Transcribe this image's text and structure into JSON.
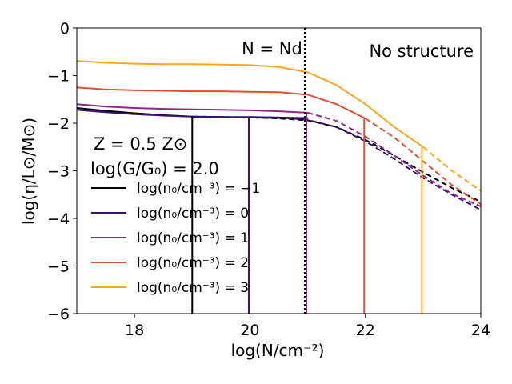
{
  "chart_data": {
    "type": "line",
    "xlabel": "log(N/cm⁻²)",
    "ylabel": "log(η/L⊙/M⊙)",
    "xlim": [
      17,
      24
    ],
    "ylim": [
      -6,
      0
    ],
    "xticks": [
      18,
      20,
      22,
      24
    ],
    "xtick_labels": [
      "18",
      "20",
      "22",
      "24"
    ],
    "yticks": [
      0,
      -1,
      -2,
      -3,
      -4,
      -5,
      -6
    ],
    "ytick_labels": [
      "0",
      "−1",
      "−2",
      "−3",
      "−4",
      "−5",
      "−6"
    ],
    "grid": false,
    "annotations": {
      "nd_label": "N = Nd",
      "nd_x": 20.95,
      "no_structure": "No structure",
      "metallicity": "Z = 0.5 Z⊙",
      "radiation": "log(G/G₀) = 2.0"
    },
    "legend_position": "center-left",
    "series": [
      {
        "name": "log(n₀/cm⁻³) = −1",
        "color": "#000000",
        "solid": {
          "x": [
            17,
            17.5,
            18,
            18.5,
            19,
            19.5,
            20,
            20.5,
            21
          ],
          "y": [
            -1.68,
            -1.74,
            -1.79,
            -1.83,
            -1.86,
            -1.87,
            -1.88,
            -1.89,
            -1.9
          ]
        },
        "dashed": {
          "x": [
            19,
            19.5,
            20,
            20.5,
            21,
            21.5,
            22,
            22.5,
            23,
            23.5,
            24
          ],
          "y": [
            -1.86,
            -1.87,
            -1.88,
            -1.9,
            -1.94,
            -2.08,
            -2.35,
            -2.68,
            -3.03,
            -3.36,
            -3.65
          ]
        },
        "cutoff": {
          "x": 19.0,
          "y": -1.86
        }
      },
      {
        "name": "log(n₀/cm⁻³) = 0",
        "color": "#3b0f70",
        "solid": {
          "x": [
            17,
            17.5,
            18,
            18.5,
            19,
            19.5,
            20,
            20.5,
            21
          ],
          "y": [
            -1.72,
            -1.77,
            -1.81,
            -1.84,
            -1.86,
            -1.87,
            -1.87,
            -1.88,
            -1.89
          ]
        },
        "dashed": {
          "x": [
            20,
            20.5,
            21,
            21.5,
            22,
            22.5,
            23,
            23.5,
            24
          ],
          "y": [
            -1.87,
            -1.88,
            -1.93,
            -2.08,
            -2.38,
            -2.75,
            -3.15,
            -3.5,
            -3.82
          ]
        },
        "cutoff": {
          "x": 19.98,
          "y": -1.87
        }
      },
      {
        "name": "log(n₀/cm⁻³) = 1",
        "color": "#8c2981",
        "solid": {
          "x": [
            17,
            17.5,
            18,
            18.5,
            19,
            19.5,
            20,
            20.5,
            21
          ],
          "y": [
            -1.6,
            -1.65,
            -1.68,
            -1.7,
            -1.71,
            -1.72,
            -1.73,
            -1.75,
            -1.78
          ]
        },
        "dashed": {
          "x": [
            21,
            21.5,
            22,
            22.5,
            23,
            23.5,
            24
          ],
          "y": [
            -1.78,
            -1.95,
            -2.28,
            -2.68,
            -3.1,
            -3.48,
            -3.75
          ]
        },
        "cutoff": {
          "x": 20.98,
          "y": -1.78
        }
      },
      {
        "name": "log(n₀/cm⁻³) = 2",
        "color": "#de4f33",
        "solid": {
          "x": [
            17,
            17.5,
            18,
            18.5,
            19,
            19.5,
            20,
            20.5,
            21,
            21.5,
            22
          ],
          "y": [
            -1.25,
            -1.29,
            -1.31,
            -1.32,
            -1.33,
            -1.33,
            -1.34,
            -1.35,
            -1.4,
            -1.6,
            -1.9
          ]
        },
        "dashed": {
          "x": [
            22,
            22.5,
            23,
            23.5,
            24
          ],
          "y": [
            -1.9,
            -2.3,
            -2.8,
            -3.3,
            -3.7
          ]
        },
        "cutoff": {
          "x": 21.98,
          "y": -1.9
        }
      },
      {
        "name": "log(n₀/cm⁻³) = 3",
        "color": "#f9a620",
        "solid": {
          "x": [
            17,
            17.5,
            18,
            18.5,
            19,
            19.5,
            20,
            20.5,
            21,
            21.5,
            22,
            22.5,
            23
          ],
          "y": [
            -0.69,
            -0.73,
            -0.75,
            -0.76,
            -0.76,
            -0.77,
            -0.78,
            -0.82,
            -0.93,
            -1.2,
            -1.6,
            -2.08,
            -2.5
          ]
        },
        "dashed": {
          "x": [
            23,
            23.5,
            24
          ],
          "y": [
            -2.5,
            -3.0,
            -3.42
          ]
        },
        "cutoff": {
          "x": 22.98,
          "y": -2.5
        }
      }
    ]
  }
}
